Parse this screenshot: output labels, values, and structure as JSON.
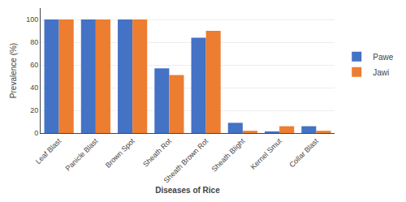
{
  "chart_data": {
    "type": "bar",
    "xlabel": "Diseases of Rice",
    "ylabel": "Prevalence (%)",
    "categories": [
      "Leaf Blast",
      "Panicle Blast",
      "Brown Spot",
      "Sheath Rot",
      "Sheath Brown Rot",
      "Sheath Blight",
      "Kernel Smut",
      "Collar Blast"
    ],
    "series": [
      {
        "name": "Pawe",
        "color": "#4472C4",
        "values": [
          100,
          100,
          100,
          57,
          84,
          9,
          1,
          6
        ]
      },
      {
        "name": "Jawi",
        "color": "#ED7D31",
        "values": [
          100,
          100,
          100,
          51,
          90,
          2,
          6,
          2
        ]
      }
    ],
    "ylim": [
      0,
      110
    ],
    "yticks": [
      0,
      20,
      40,
      60,
      80,
      100
    ],
    "grid": true,
    "legend": "right"
  }
}
